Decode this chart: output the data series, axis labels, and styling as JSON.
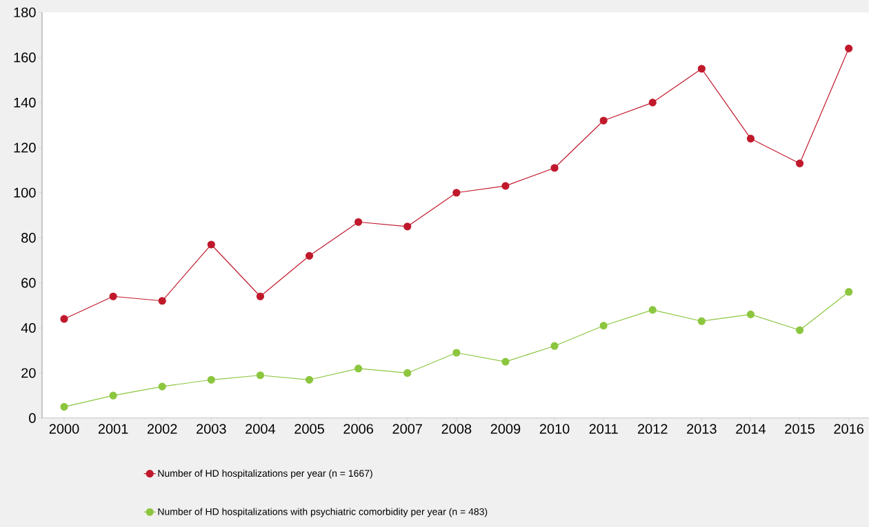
{
  "chart_data": {
    "type": "line",
    "categories": [
      "2000",
      "2001",
      "2002",
      "2003",
      "2004",
      "2005",
      "2006",
      "2007",
      "2008",
      "2009",
      "2010",
      "2011",
      "2012",
      "2013",
      "2014",
      "2015",
      "2016"
    ],
    "series": [
      {
        "name": "Number of HD hospitalizations per year (n = 1667)",
        "color": "#c0192c",
        "values": [
          44,
          54,
          52,
          77,
          54,
          72,
          87,
          85,
          100,
          103,
          111,
          132,
          140,
          155,
          124,
          113,
          164
        ]
      },
      {
        "name": "Number of HD hospitalizations with psychiatric comorbidity per year (n = 483)",
        "color": "#8cc63f",
        "values": [
          5,
          10,
          14,
          17,
          19,
          17,
          22,
          20,
          29,
          25,
          32,
          41,
          48,
          43,
          46,
          39,
          56
        ]
      }
    ],
    "ylim": [
      0,
      180
    ],
    "yticks": [
      0,
      20,
      40,
      60,
      80,
      100,
      120,
      140,
      160,
      180
    ],
    "grid": false,
    "legend": "bottom",
    "marker": "circle",
    "line_style": "solid"
  }
}
